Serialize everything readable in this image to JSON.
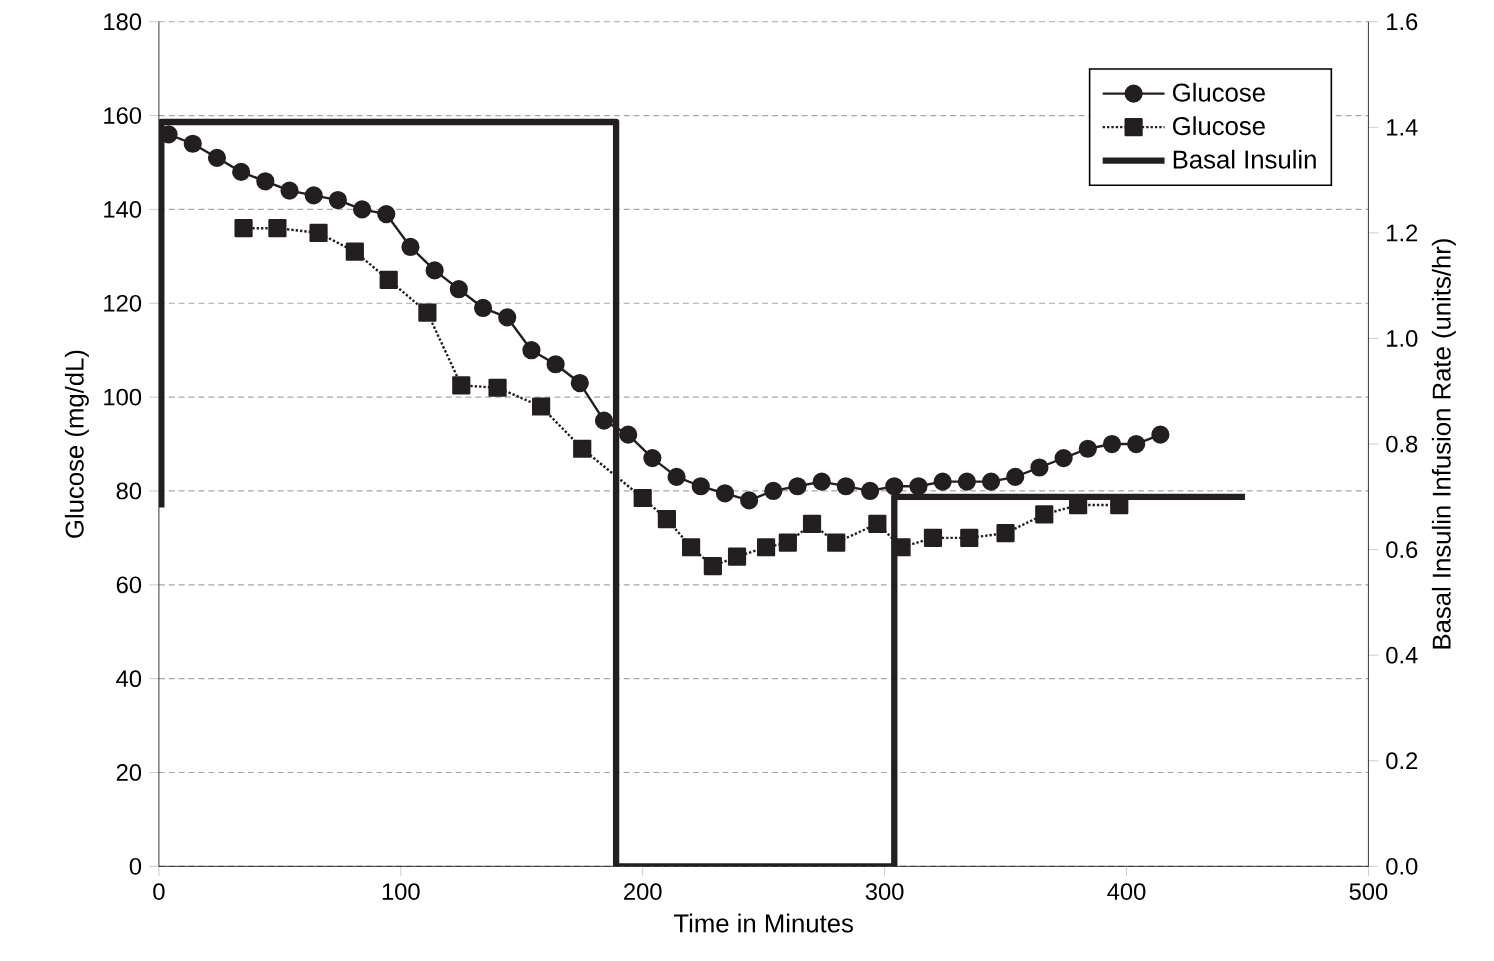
{
  "chart_data": {
    "type": "line",
    "xlabel": "Time in Minutes",
    "ylabel": "Glucose (mg/dL)",
    "y2label": "Basal Insulin Infusion Rate (units/hr)",
    "xlim": [
      0,
      500
    ],
    "xticks": [
      0,
      100,
      200,
      300,
      400,
      500
    ],
    "ylim": [
      0,
      180
    ],
    "yticks": [
      0,
      20,
      40,
      60,
      80,
      100,
      120,
      140,
      160,
      180
    ],
    "y2lim": [
      0,
      1.6
    ],
    "y2ticks": [
      {
        "value": 0,
        "label": "0.0"
      },
      {
        "value": 0.2,
        "label": "0.2"
      },
      {
        "value": 0.4,
        "label": "0.4"
      },
      {
        "value": 0.6,
        "label": "0.6"
      },
      {
        "value": 0.8,
        "label": "0.8"
      },
      {
        "value": 1.0,
        "label": "1.0"
      },
      {
        "value": 1.2,
        "label": "1.2"
      },
      {
        "value": 1.4,
        "label": "1.4"
      },
      {
        "value": 1.6,
        "label": "1.6"
      }
    ],
    "grid": "y",
    "legend": "top right",
    "series": [
      {
        "name": "Glucose",
        "color": "#231f20",
        "marker": "circle",
        "line_style": "solid",
        "x": [
          4,
          14,
          24,
          34,
          44,
          54,
          64,
          74,
          84,
          94,
          104,
          114,
          124,
          134,
          144,
          154,
          164,
          174,
          184,
          194,
          204,
          214,
          224,
          234,
          244,
          254,
          264,
          274,
          284,
          294,
          304,
          314,
          324,
          334,
          344,
          354,
          364,
          374,
          384,
          394,
          404,
          414
        ],
        "values": [
          156,
          154,
          151,
          148,
          146,
          144,
          143,
          142,
          140,
          139,
          132,
          127,
          123,
          119,
          117,
          110,
          107,
          103,
          95,
          92,
          87,
          83,
          81,
          79.5,
          78,
          80,
          81,
          82,
          81,
          80,
          81,
          81,
          82,
          82,
          82,
          83,
          85,
          87,
          89,
          90,
          90,
          92
        ]
      },
      {
        "name": "Glucose",
        "color": "#231f20",
        "marker": "square",
        "line_style": "dotted",
        "x": [
          35,
          49,
          66,
          81,
          95,
          111,
          125,
          140,
          158,
          175,
          200,
          210,
          220,
          229,
          239,
          251,
          260,
          270,
          280,
          297,
          307,
          320,
          335,
          350,
          366,
          380,
          397
        ],
        "values": [
          136,
          136,
          135,
          131,
          125,
          118,
          102.5,
          102,
          98,
          89,
          78.5,
          74,
          68,
          64,
          66,
          68,
          69,
          73,
          69,
          73,
          68,
          70,
          70,
          71,
          75,
          77,
          77
        ]
      },
      {
        "name": "Basal Insulin",
        "color": "#231f20",
        "marker": "none",
        "line_style": "solid",
        "axis": "y2",
        "type": "line",
        "x": [
          1,
          1,
          189,
          189,
          304,
          304,
          449
        ],
        "values": [
          0.68,
          1.41,
          1.41,
          0,
          0,
          0.7,
          0.7
        ]
      }
    ]
  }
}
